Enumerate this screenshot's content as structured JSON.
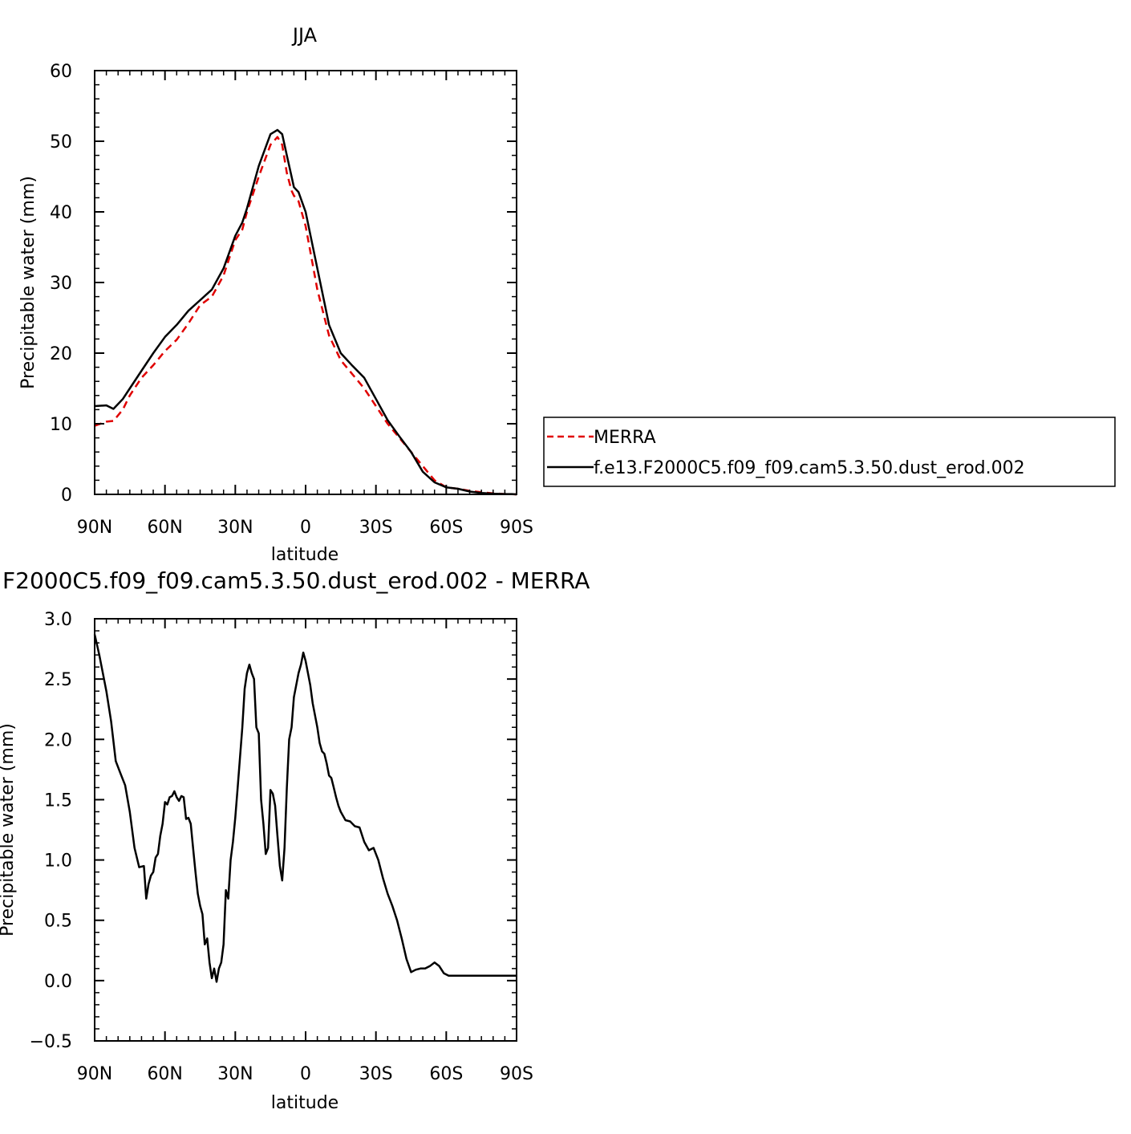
{
  "chart_data": [
    {
      "type": "line",
      "title": "JJA",
      "xlabel": "latitude",
      "ylabel": "Precipitable water (mm)",
      "xlim": [
        90,
        -90
      ],
      "ylim": [
        0,
        60
      ],
      "xtick_values": [
        90,
        60,
        30,
        0,
        -30,
        -60,
        -90
      ],
      "xtick_labels": [
        "90N",
        "60N",
        "30N",
        "0",
        "30S",
        "60S",
        "90S"
      ],
      "ytick_values": [
        0,
        10,
        20,
        30,
        40,
        50,
        60
      ],
      "ytick_labels": [
        "0",
        "10",
        "20",
        "30",
        "40",
        "50",
        "60"
      ],
      "legend_position": "right",
      "series": [
        {
          "name": "MERRA",
          "color": "#e00000",
          "style": "dashed",
          "x": [
            90,
            85,
            82,
            78,
            75,
            70,
            65,
            60,
            55,
            50,
            45,
            40,
            35,
            30,
            27,
            25,
            20,
            15,
            12,
            10,
            8,
            6,
            5,
            3,
            0,
            -5,
            -10,
            -15,
            -20,
            -25,
            -30,
            -35,
            -40,
            -45,
            -50,
            -55,
            -60,
            -65,
            -70,
            -75,
            -80,
            -85,
            -88,
            -90
          ],
          "y": [
            9.7,
            10.3,
            10.4,
            12,
            14,
            16.5,
            18.3,
            20.3,
            21.9,
            24.2,
            26.8,
            28,
            31,
            36,
            37.5,
            40,
            45,
            49.5,
            50.6,
            49.5,
            45.5,
            43,
            42.3,
            41.5,
            38,
            29,
            22.5,
            19,
            17,
            15,
            12.5,
            10,
            8,
            6,
            4,
            2,
            1,
            0.8,
            0.5,
            0.3,
            0.15,
            0.05,
            0.02,
            0.0
          ]
        },
        {
          "name": "f.e13.F2000C5.f09_f09.cam5.3.50.dust_erod.002",
          "color": "#000000",
          "style": "solid",
          "x": [
            90,
            85,
            82,
            78,
            75,
            70,
            65,
            60,
            55,
            50,
            45,
            40,
            35,
            30,
            27,
            25,
            20,
            15,
            12,
            10,
            8,
            6,
            5,
            3,
            0,
            -5,
            -10,
            -15,
            -20,
            -25,
            -30,
            -35,
            -40,
            -45,
            -50,
            -55,
            -60,
            -65,
            -70,
            -75,
            -80,
            -85,
            -88,
            -90
          ],
          "y": [
            12.5,
            12.6,
            12.1,
            13.5,
            15,
            17.5,
            20,
            22.3,
            24,
            26,
            27.5,
            29,
            32,
            36.6,
            38.5,
            40.5,
            46.5,
            51,
            51.6,
            51.0,
            48,
            45,
            43.5,
            42.8,
            40,
            32,
            24,
            20,
            18.2,
            16.5,
            13.5,
            10.5,
            8.2,
            6,
            3.2,
            1.7,
            1.0,
            0.8,
            0.4,
            0.2,
            0.1,
            0.05,
            0.05,
            0.0
          ]
        }
      ]
    },
    {
      "type": "line",
      "title": "f.e13.F2000C5.f09_f09.cam5.3.50.dust_erod.002 - MERRA",
      "xlabel": "latitude",
      "ylabel": "Precipitable water (mm)",
      "xlim": [
        90,
        -90
      ],
      "ylim": [
        -0.5,
        3.0
      ],
      "xtick_values": [
        90,
        60,
        30,
        0,
        -30,
        -60,
        -90
      ],
      "xtick_labels": [
        "90N",
        "60N",
        "30N",
        "0",
        "30S",
        "60S",
        "90S"
      ],
      "ytick_values": [
        -0.5,
        0.0,
        0.5,
        1.0,
        1.5,
        2.0,
        2.5,
        3.0
      ],
      "ytick_labels": [
        "−0.5",
        "0.0",
        "0.5",
        "1.0",
        "1.5",
        "2.0",
        "2.5",
        "3.0"
      ],
      "series": [
        {
          "color": "#000000",
          "style": "solid",
          "x": [
            90,
            88,
            85,
            83,
            81,
            79,
            77,
            75,
            73,
            71,
            69,
            68,
            67,
            66,
            65,
            64,
            63,
            62,
            61,
            60,
            59,
            58,
            57,
            56,
            55,
            54,
            53,
            52,
            51,
            50,
            49,
            48,
            47,
            46,
            45,
            44,
            43,
            42,
            41,
            40,
            39,
            38,
            37,
            36,
            35,
            34,
            33,
            32,
            31,
            30,
            29,
            28,
            27,
            26,
            25,
            24,
            23,
            22,
            21,
            20,
            19,
            18,
            17,
            16,
            15,
            14,
            13,
            12,
            11,
            10,
            9,
            8,
            7,
            6,
            5,
            4,
            3,
            2,
            1,
            0,
            -1,
            -2,
            -3,
            -4,
            -5,
            -6,
            -7,
            -8,
            -9,
            -10,
            -11,
            -12,
            -13,
            -14,
            -15,
            -17,
            -19,
            -21,
            -23,
            -25,
            -27,
            -29,
            -31,
            -33,
            -35,
            -37,
            -39,
            -41,
            -43,
            -45,
            -47,
            -49,
            -51,
            -53,
            -55,
            -57,
            -59,
            -61,
            -63,
            -65,
            -66,
            -68,
            -70,
            -72,
            -74,
            -76,
            -78,
            -80,
            -82,
            -84,
            -86,
            -88,
            -90
          ],
          "y": [
            2.87,
            2.7,
            2.4,
            2.15,
            1.82,
            1.72,
            1.62,
            1.4,
            1.1,
            0.94,
            0.95,
            0.68,
            0.8,
            0.87,
            0.9,
            1.02,
            1.05,
            1.2,
            1.3,
            1.48,
            1.46,
            1.52,
            1.53,
            1.57,
            1.52,
            1.49,
            1.53,
            1.52,
            1.34,
            1.35,
            1.3,
            1.1,
            0.9,
            0.72,
            0.62,
            0.55,
            0.3,
            0.35,
            0.15,
            0.02,
            0.1,
            -0.01,
            0.1,
            0.15,
            0.3,
            0.75,
            0.68,
            1.0,
            1.15,
            1.35,
            1.6,
            1.85,
            2.1,
            2.42,
            2.55,
            2.62,
            2.55,
            2.5,
            2.1,
            2.05,
            1.5,
            1.3,
            1.05,
            1.1,
            1.58,
            1.55,
            1.45,
            1.2,
            0.95,
            0.83,
            1.1,
            1.6,
            2.0,
            2.1,
            2.35,
            2.45,
            2.55,
            2.62,
            2.72,
            2.65,
            2.55,
            2.45,
            2.3,
            2.2,
            2.1,
            1.97,
            1.9,
            1.88,
            1.8,
            1.7,
            1.68,
            1.6,
            1.52,
            1.45,
            1.4,
            1.33,
            1.32,
            1.28,
            1.27,
            1.15,
            1.08,
            1.1,
            1.0,
            0.85,
            0.72,
            0.62,
            0.5,
            0.35,
            0.18,
            0.07,
            0.09,
            0.1,
            0.1,
            0.12,
            0.15,
            0.12,
            0.06,
            0.04,
            0.04,
            0.04,
            0.04,
            0.04,
            0.04,
            0.04,
            0.04,
            0.04,
            0.04,
            0.04,
            0.04,
            0.04,
            0.04,
            0.04,
            0.04
          ]
        }
      ]
    }
  ]
}
